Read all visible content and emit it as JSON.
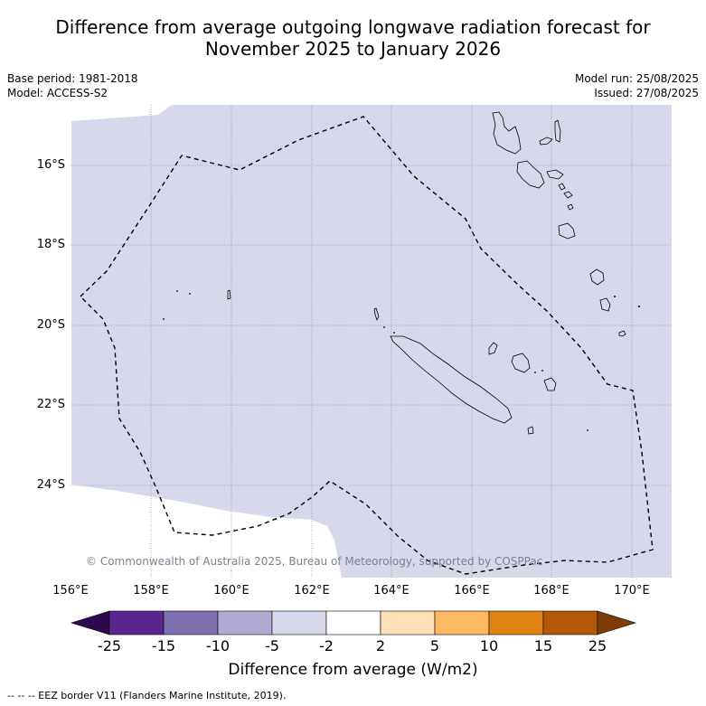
{
  "title_line1": "Difference from average outgoing longwave radiation forecast for",
  "title_line2": "November 2025 to January 2026",
  "meta_left": {
    "base_period": "Base period: 1981-2018",
    "model": "Model: ACCESS-S2"
  },
  "meta_right": {
    "model_run": "Model run: 25/08/2025",
    "issued": "Issued: 27/08/2025"
  },
  "lat_labels": [
    "16°S",
    "18°S",
    "20°S",
    "22°S",
    "24°S"
  ],
  "lon_labels": [
    "156°E",
    "158°E",
    "160°E",
    "162°E",
    "164°E",
    "166°E",
    "168°E",
    "170°E"
  ],
  "copyright": "© Commonwealth of Australia 2025, Bureau of Meteorology, supported by COSPPac",
  "colorbar": {
    "title": "Difference from average (W/m2)",
    "tick_labels": [
      "-25",
      "-15",
      "-10",
      "-5",
      "-2",
      "2",
      "5",
      "10",
      "15",
      "25"
    ],
    "colors": [
      "#2d0a4e",
      "#5b2690",
      "#7e70ae",
      "#b0a9d4",
      "#d8d8eb",
      "#ffffff",
      "#fee0b6",
      "#fdb863",
      "#e08214",
      "#b35806",
      "#7f3b08"
    ]
  },
  "map": {
    "fill_color": "#d8d8eb",
    "land_outline": "#000000",
    "eez_style": "dashed"
  },
  "footnote": "--  --  -- EEZ border V11 (Flanders Marine Institute, 2019)."
}
